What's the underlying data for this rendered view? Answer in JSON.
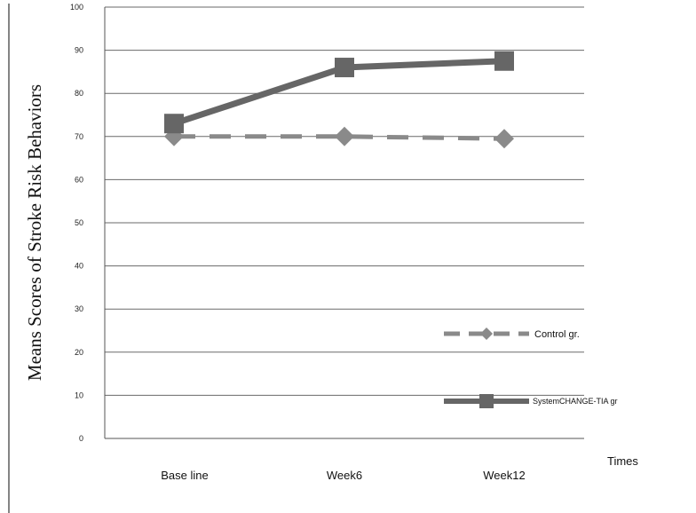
{
  "chart_data": {
    "type": "line",
    "categories": [
      "Base line",
      "Week6",
      "Week12"
    ],
    "series": [
      {
        "name": "Control gr.",
        "values": [
          70,
          70,
          69.5
        ],
        "color": "#8a8a8a",
        "style": "dashed",
        "marker": "diamond"
      },
      {
        "name": "SystemCHANGE-TIA gr",
        "values": [
          73,
          86,
          87.5
        ],
        "color": "#666666",
        "style": "solid",
        "marker": "square"
      }
    ],
    "ylim": [
      0,
      100
    ],
    "yticks": [
      "0",
      "10",
      "20",
      "30",
      "40",
      "50",
      "60",
      "70",
      "80",
      "90",
      "100"
    ],
    "ylabel": "Means Scores of Stroke Risk Behaviors",
    "xlabel": "Times",
    "grid": true,
    "legend": "right"
  }
}
